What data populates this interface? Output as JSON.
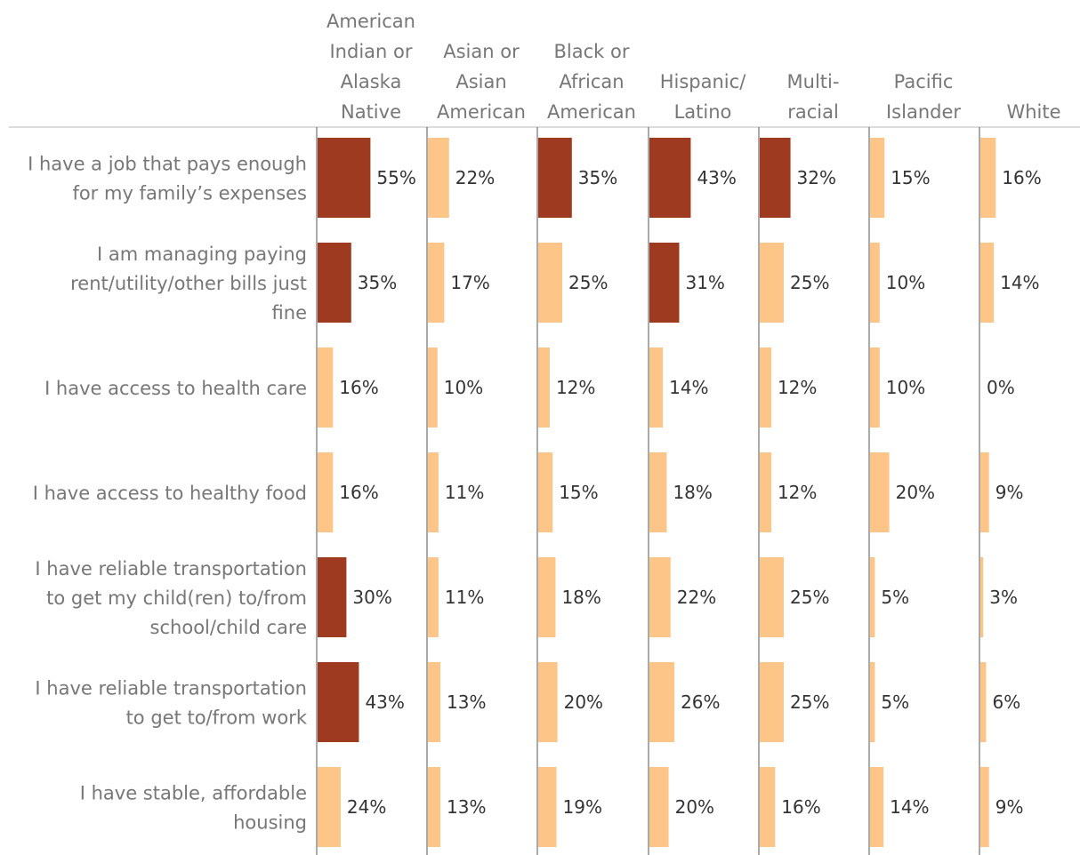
{
  "chart_data": {
    "type": "bar",
    "orientation": "horizontal-small-multiples",
    "title": "",
    "xlabel": "",
    "ylabel": "",
    "xlim": [
      0,
      100
    ],
    "highlight_threshold_pct": 30,
    "colors": {
      "high": "#9E3A1F",
      "low": "#FDC587",
      "axis": "#555555",
      "header_rule": "#BBBBBB"
    },
    "columns": [
      {
        "lines": [
          "American",
          "Indian or",
          "Alaska",
          "Native"
        ]
      },
      {
        "lines": [
          "Asian or",
          "Asian",
          "American"
        ]
      },
      {
        "lines": [
          "Black or",
          "African",
          "American"
        ]
      },
      {
        "lines": [
          "Hispanic/",
          "Latino"
        ]
      },
      {
        "lines": [
          "Multi-",
          "racial"
        ]
      },
      {
        "lines": [
          "Pacific",
          "Islander"
        ]
      },
      {
        "lines": [
          "White"
        ]
      }
    ],
    "rows": [
      {
        "lines": [
          "I have a job that pays enough",
          "for my family’s expenses"
        ]
      },
      {
        "lines": [
          "I am managing paying",
          "rent/utility/other bills just",
          "fine"
        ]
      },
      {
        "lines": [
          "I have access to health care"
        ]
      },
      {
        "lines": [
          "I have access to healthy food"
        ]
      },
      {
        "lines": [
          "I have reliable transportation",
          "to get my child(ren) to/from",
          "school/child care"
        ]
      },
      {
        "lines": [
          "I have reliable transportation",
          "to get to/from work"
        ]
      },
      {
        "lines": [
          "I have stable, affordable",
          "housing"
        ]
      }
    ],
    "values": [
      [
        55,
        22,
        35,
        43,
        32,
        15,
        16
      ],
      [
        35,
        17,
        25,
        31,
        25,
        10,
        14
      ],
      [
        16,
        10,
        12,
        14,
        12,
        10,
        0
      ],
      [
        16,
        11,
        15,
        18,
        12,
        20,
        9
      ],
      [
        30,
        11,
        18,
        22,
        25,
        5,
        3
      ],
      [
        43,
        13,
        20,
        26,
        25,
        5,
        6
      ],
      [
        24,
        13,
        19,
        20,
        16,
        14,
        9
      ]
    ],
    "value_labels": [
      [
        "55%",
        "22%",
        "35%",
        "43%",
        "32%",
        "15%",
        "16%"
      ],
      [
        "35%",
        "17%",
        "25%",
        "31%",
        "25%",
        "10%",
        "14%"
      ],
      [
        "16%",
        "10%",
        "12%",
        "14%",
        "12%",
        "10%",
        "0%"
      ],
      [
        "16%",
        "11%",
        "15%",
        "18%",
        "12%",
        "20%",
        "9%"
      ],
      [
        "30%",
        "11%",
        "18%",
        "22%",
        "25%",
        "5%",
        "3%"
      ],
      [
        "43%",
        "13%",
        "20%",
        "26%",
        "25%",
        "5%",
        "6%"
      ],
      [
        "24%",
        "13%",
        "19%",
        "20%",
        "16%",
        "14%",
        "9%"
      ]
    ]
  }
}
